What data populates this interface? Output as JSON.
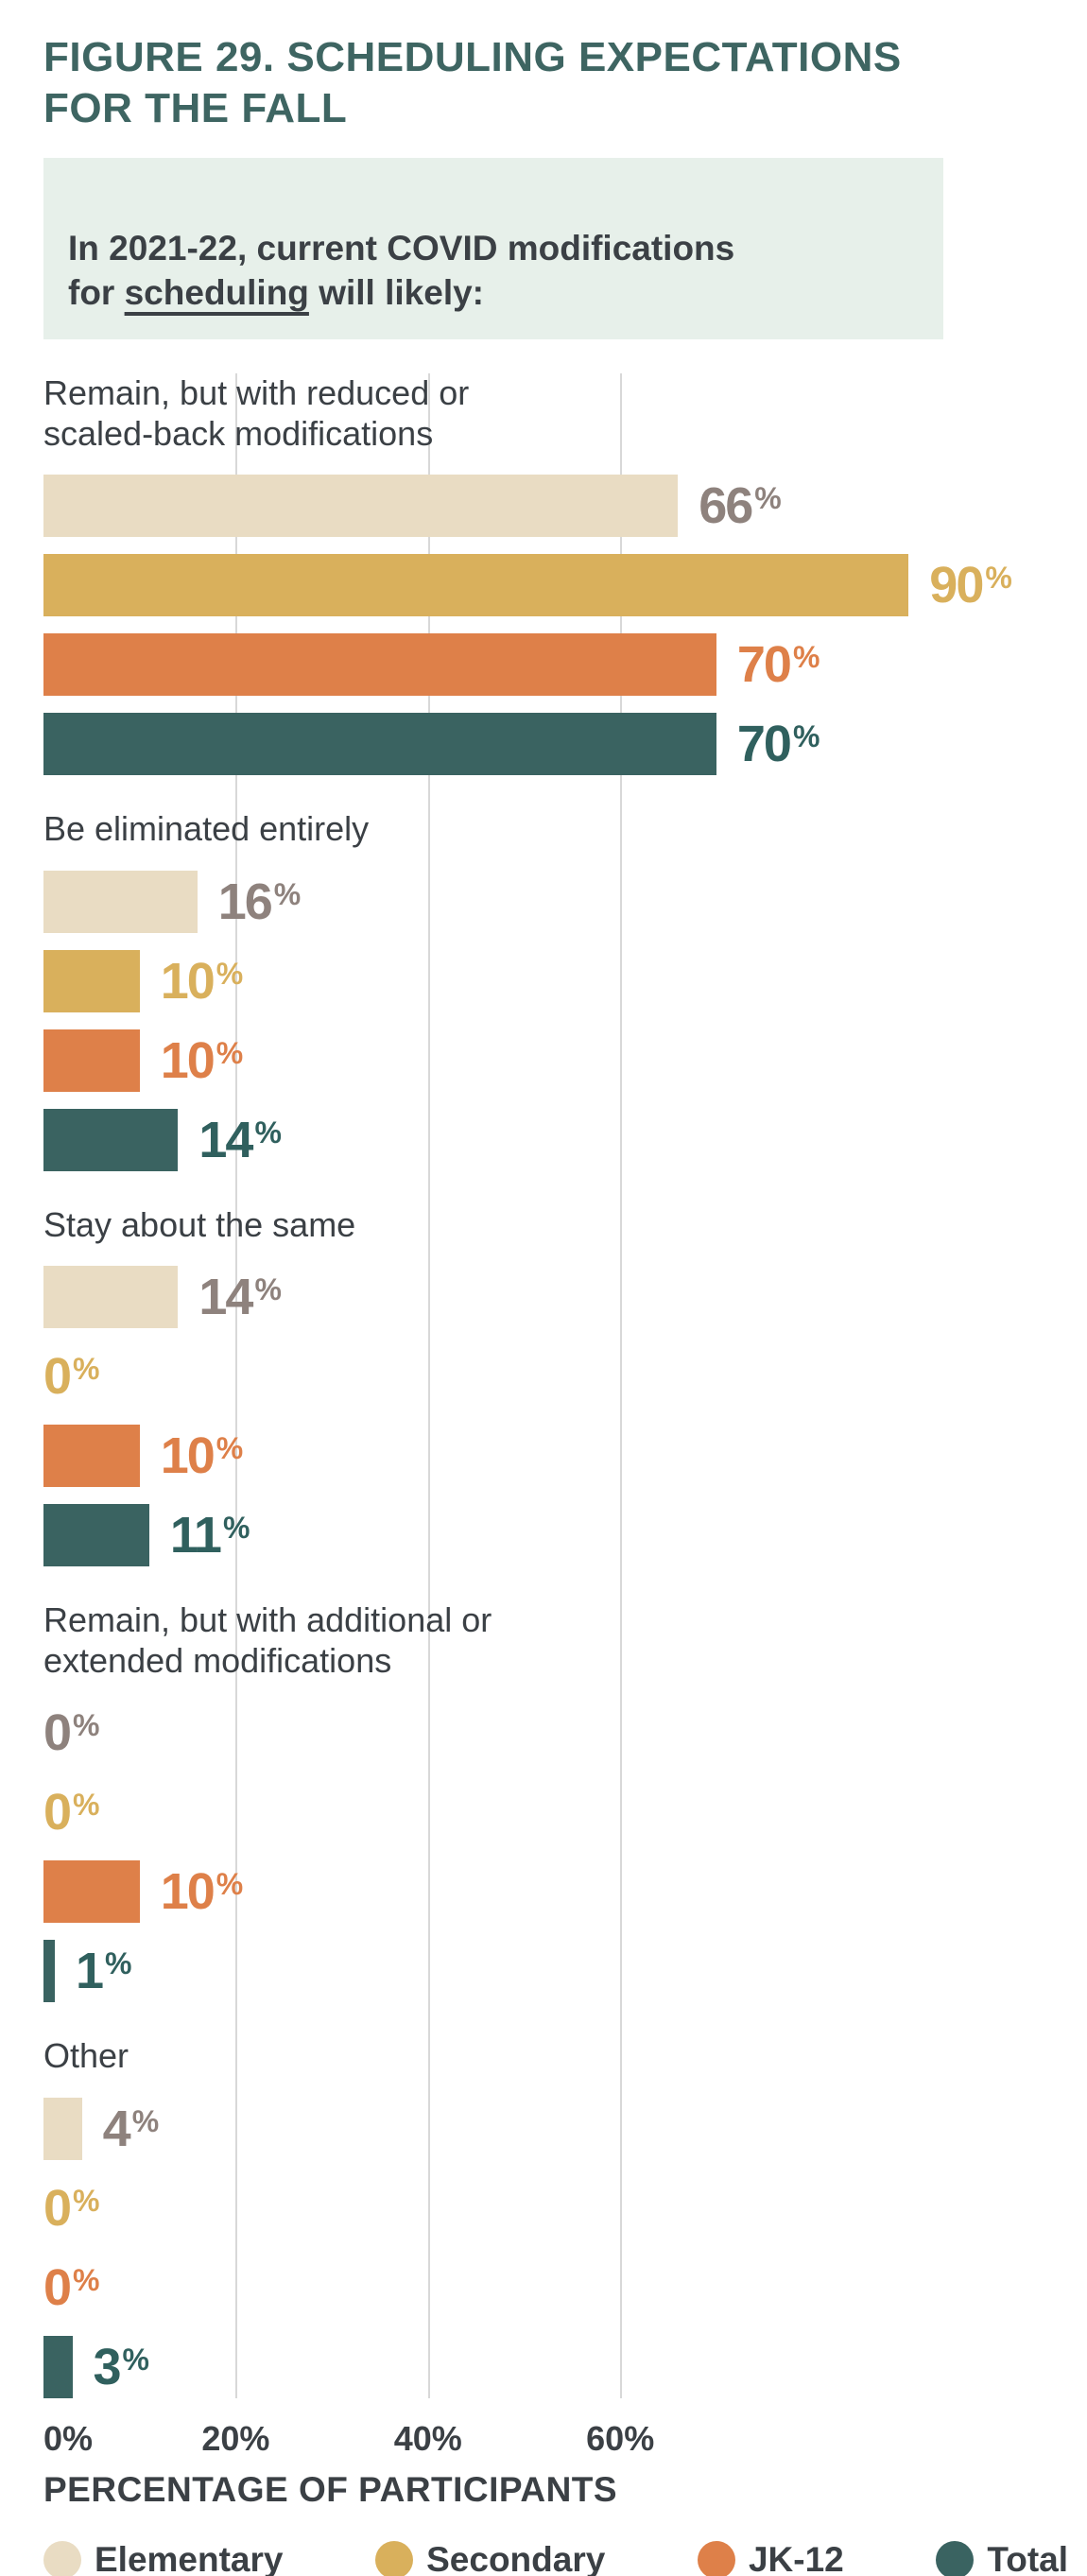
{
  "title": {
    "text": "FIGURE 29. SCHEDULING EXPECTATIONS\nFOR THE FALL"
  },
  "callout": {
    "prefix": "In 2021-22, current COVID modifications\nfor ",
    "underlined": "scheduling",
    "suffix": " will likely:"
  },
  "colors": {
    "title": "#3E6562",
    "text": "#3B4045",
    "callout_bg": "#E7F0EA",
    "gridline": "#D8D8D8",
    "series": [
      "#E9DCC3",
      "#D9B05C",
      "#DE8049",
      "#3A6361"
    ],
    "value_labels": [
      "#8E827D",
      "#D9B05C",
      "#DE8049",
      "#30605E"
    ]
  },
  "chart_data": {
    "type": "bar",
    "orientation": "horizontal",
    "unit": "percent",
    "series": [
      "Elementary",
      "Secondary",
      "JK-12",
      "Total"
    ],
    "groups": [
      {
        "label": "Remain, but with reduced or\nscaled-back modifications",
        "values": [
          66,
          90,
          70,
          70
        ]
      },
      {
        "label": "Be eliminated entirely",
        "values": [
          16,
          10,
          10,
          14
        ]
      },
      {
        "label": "Stay about the same",
        "values": [
          14,
          0,
          10,
          11
        ]
      },
      {
        "label": "Remain, but with additional or\nextended modifications",
        "values": [
          0,
          0,
          10,
          1
        ]
      },
      {
        "label": "Other",
        "values": [
          4,
          0,
          0,
          3
        ]
      }
    ],
    "value_suffix": "%",
    "x_ticks": [
      {
        "label": "0%",
        "value": 0
      },
      {
        "label": "20%",
        "value": 20
      },
      {
        "label": "40%",
        "value": 40
      },
      {
        "label": "60%",
        "value": 60
      }
    ],
    "gridlines_at": [
      20,
      40,
      60
    ],
    "xlim": [
      0,
      100
    ],
    "xlabel": "PERCENTAGE OF PARTICIPANTS",
    "legend_position": "bottom"
  },
  "legend": {
    "items": [
      {
        "label": "Elementary",
        "color": "#E9DCC3"
      },
      {
        "label": "Secondary",
        "color": "#D9B05C"
      },
      {
        "label": "JK-12",
        "color": "#DE8049"
      },
      {
        "label": "Total",
        "color": "#3A6361"
      }
    ]
  }
}
